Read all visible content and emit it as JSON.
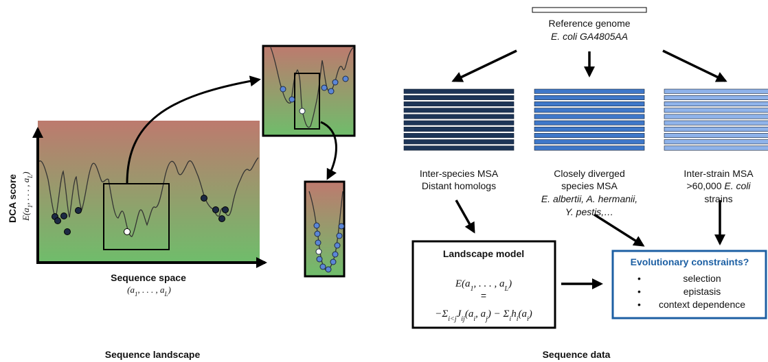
{
  "landscape": {
    "caption": "Sequence landscape",
    "y_axis_title": "DCA score",
    "y_axis_formula": "E(a1, . . . , aL)",
    "x_axis_title": "Sequence space",
    "x_axis_formula": "(a1, . . . , aL)"
  },
  "data_panel": {
    "caption": "Sequence data",
    "reference": {
      "title": "Reference genome",
      "strain": "E. coli GA4805AA"
    },
    "msas": [
      {
        "line1": "Inter-species MSA",
        "line2": "Distant homologs",
        "color": "#1d3557"
      },
      {
        "line1": "Closely diverged",
        "line2": "species MSA",
        "line3": "E. albertii, A. hermanii,",
        "line4": "Y. pestis,…",
        "color": "#3f78c9"
      },
      {
        "line1": "Inter-strain MSA",
        "line2_prefix": ">60,000 ",
        "line2_italic": "E. coli",
        "line3": "strains",
        "color": "#8fb3ea"
      }
    ],
    "model": {
      "title": "Landscape model",
      "equation_top": "E(a1, . . . , aL)",
      "equals": "=",
      "equation_bottom": "−Σi<j Jij(ai, aj) − Σi hi(ai)"
    },
    "constraints": {
      "title": "Evolutionary constraints?",
      "items": [
        "selection",
        "epistasis",
        "context dependence"
      ],
      "accent": "#1c5fa3"
    }
  },
  "colors": {
    "gradient_top": "#bd7a6e",
    "gradient_bottom": "#6fbd6b",
    "point_dark": "#1d2a44",
    "point_blue": "#5b86d6",
    "point_wt": "#ffffff"
  }
}
